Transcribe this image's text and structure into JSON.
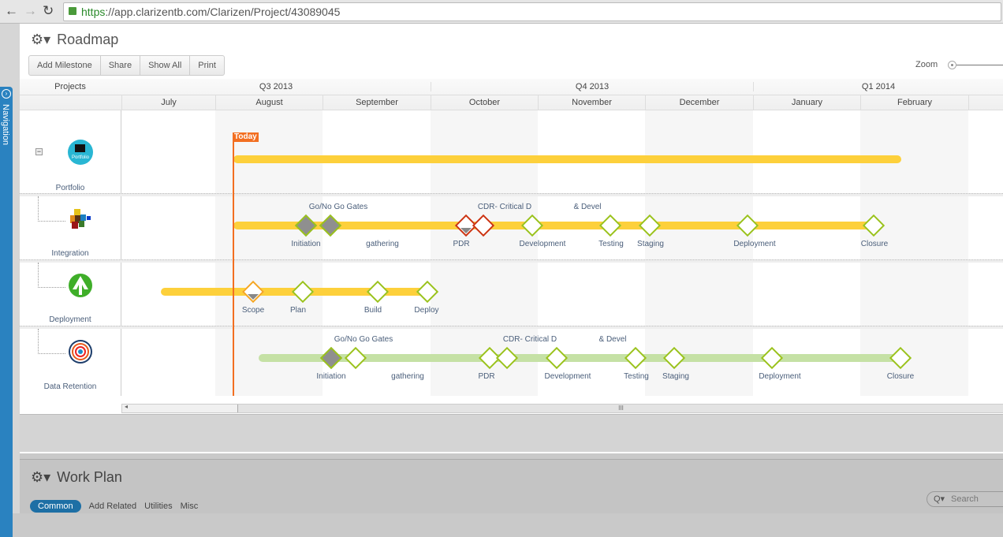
{
  "browser": {
    "url_scheme": "https",
    "url_rest": "://app.clarizentb.com/Clarizen/Project/43089045"
  },
  "sidebar": {
    "navigation_label": "Navigation"
  },
  "roadmap": {
    "title": "Roadmap",
    "toolbar": [
      "Add Milestone",
      "Share",
      "Show All",
      "Print"
    ],
    "zoom_label": "Zoom",
    "projects_header": "Projects",
    "quarters": [
      "Q3 2013",
      "Q4 2013",
      "Q1 2014"
    ],
    "months": [
      "July",
      "August",
      "September",
      "October",
      "November",
      "December",
      "January",
      "February"
    ],
    "today_label": "Today",
    "projects": [
      {
        "name": "Portfolio",
        "icon_text": "Portfolio",
        "bar_color": "#fdd03b"
      },
      {
        "name": "Integration",
        "bar_color": "#fdd03b",
        "milestones": [
          {
            "label": "Initiation",
            "status": "gray"
          },
          {
            "label": "Go/No Go Gates",
            "status": "gray"
          },
          {
            "label": "gathering",
            "status": "none"
          },
          {
            "label": "PDR",
            "status": "red"
          },
          {
            "label": "CDR- Critical D",
            "status": "red"
          },
          {
            "label": "Development",
            "status": "green"
          },
          {
            "label": "& Devel",
            "status": "none"
          },
          {
            "label": "Testing",
            "status": "green"
          },
          {
            "label": "Staging",
            "status": "green"
          },
          {
            "label": "Deployment",
            "status": "green"
          },
          {
            "label": "Closure",
            "status": "green"
          }
        ]
      },
      {
        "name": "Deployment",
        "bar_color": "#fdd03b",
        "milestones": [
          {
            "label": "Scope",
            "status": "orange"
          },
          {
            "label": "Plan",
            "status": "green"
          },
          {
            "label": "Build",
            "status": "green"
          },
          {
            "label": "Deploy",
            "status": "green"
          }
        ]
      },
      {
        "name": "Data Retention",
        "bar_color": "#c5e1a5",
        "milestones": [
          {
            "label": "Initiation",
            "status": "gray"
          },
          {
            "label": "Go/No Go Gates",
            "status": "green"
          },
          {
            "label": "gathering",
            "status": "none"
          },
          {
            "label": "PDR",
            "status": "green"
          },
          {
            "label": "CDR- Critical D",
            "status": "green"
          },
          {
            "label": "Development",
            "status": "green"
          },
          {
            "label": "& Devel",
            "status": "none"
          },
          {
            "label": "Testing",
            "status": "green"
          },
          {
            "label": "Staging",
            "status": "green"
          },
          {
            "label": "Deployment",
            "status": "green"
          },
          {
            "label": "Closure",
            "status": "green"
          }
        ]
      }
    ],
    "scroll_grip": "III"
  },
  "workplan": {
    "title": "Work Plan",
    "tabs": [
      "Common",
      "Add Related",
      "Utilities",
      "Misc"
    ],
    "search_placeholder": "Search"
  },
  "colors": {
    "today": "#f26f21",
    "accent": "#1d6fa5"
  }
}
